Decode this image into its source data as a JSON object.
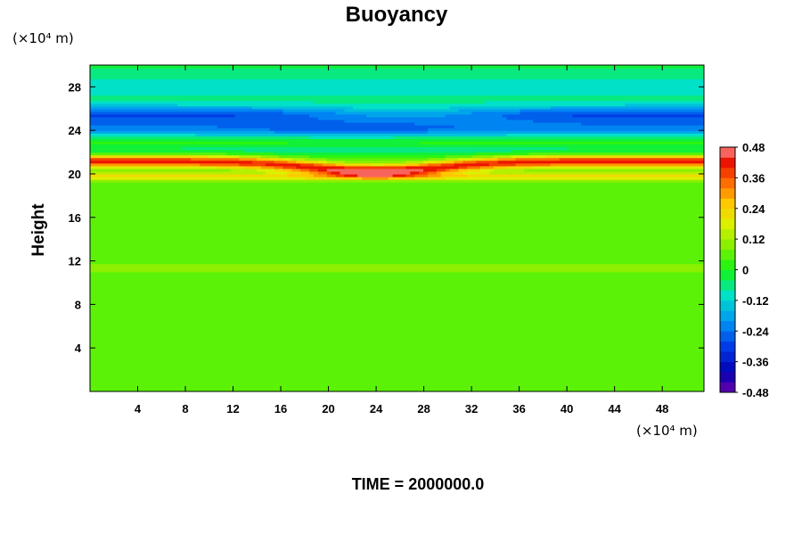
{
  "chart_data": {
    "type": "heatmap",
    "title": "Buoyancy",
    "xlabel": "",
    "ylabel": "Height",
    "x_units": "(×10⁴ m)",
    "y_units": "(×10⁴ m)",
    "xlim": [
      0,
      51.5
    ],
    "ylim": [
      0,
      30
    ],
    "x_ticks": [
      4,
      8,
      12,
      16,
      20,
      24,
      28,
      32,
      36,
      40,
      44,
      48
    ],
    "y_ticks": [
      4,
      8,
      12,
      16,
      20,
      24,
      28
    ],
    "colorbar": {
      "range": [
        -0.48,
        0.48
      ],
      "ticks": [
        0.48,
        0.36,
        0.24,
        0.12,
        0,
        -0.12,
        -0.24,
        -0.36,
        -0.48
      ],
      "tick_labels": [
        "0.48",
        "0.36",
        "0.24",
        "0.12",
        "0",
        "-0.12",
        "-0.24",
        "-0.36",
        "-0.48"
      ],
      "n_levels": 24
    },
    "field_description_points": [
      {
        "height": 5,
        "value": 0.03
      },
      {
        "height": 11.5,
        "value": 0.1
      },
      {
        "height": 15,
        "value": 0.04
      },
      {
        "height": 19.8,
        "value": 0.2
      },
      {
        "height": 21,
        "value": 0.4
      },
      {
        "height": 22.5,
        "value": -0.06
      },
      {
        "height": 24,
        "value": -0.22
      },
      {
        "height": 25.5,
        "value": -0.24
      },
      {
        "height": 28.5,
        "value": -0.1
      }
    ],
    "grid": false,
    "legend": "colorbar right"
  },
  "footer": {
    "time_label": "TIME = 2000000.0"
  },
  "colors": {
    "background": "#ffffff",
    "axis": "#000000"
  }
}
